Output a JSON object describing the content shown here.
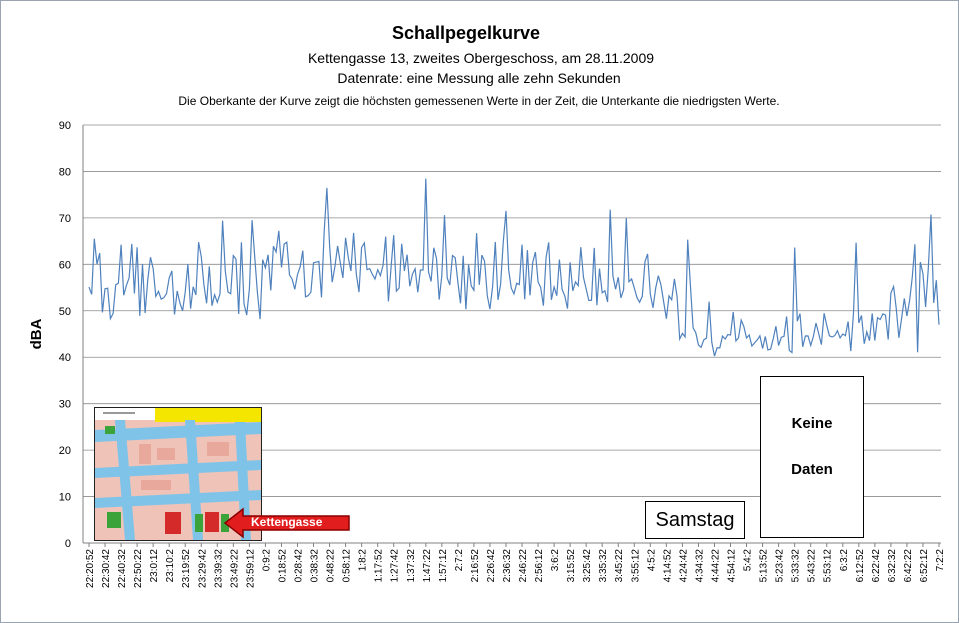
{
  "chart_data": {
    "type": "line",
    "title": "Schallpegelkurve",
    "subtitle_lines": [
      "Kettengasse 13, zweites Obergeschoss, am 28.11.2009",
      "Datenrate: eine Messung alle zehn Sekunden"
    ],
    "note": "Die Oberkante der Kurve zeigt die höchsten gemessenen Werte  in der Zeit, die Unterkante  die niedrigsten Werte.",
    "ylabel": "dBA",
    "xlabel": "",
    "ylim": [
      0,
      90
    ],
    "y_ticks": [
      0,
      10,
      20,
      30,
      40,
      50,
      60,
      70,
      80,
      90
    ],
    "grid": true,
    "legend": "none",
    "line_color": "#4f81bd",
    "x_tick_labels": [
      "22:20:52",
      "22:30:42",
      "22:40:32",
      "22:50:22",
      "23:0:12",
      "23:10:2",
      "23:19:52",
      "23:29:42",
      "23:39:32",
      "23:49:22",
      "23:59:12",
      "0:9:2",
      "0:18:52",
      "0:28:42",
      "0:38:32",
      "0:48:22",
      "0:58:12",
      "1:8:2",
      "1:17:52",
      "1:27:42",
      "1:37:32",
      "1:47:22",
      "1:57:12",
      "2:7:2",
      "2:16:52",
      "2:26:42",
      "2:36:32",
      "2:46:22",
      "2:56:12",
      "3:6:2",
      "3:15:52",
      "3:25:42",
      "3:35:32",
      "3:45:22",
      "3:55:12",
      "4:5:2",
      "4:14:52",
      "4:24:42",
      "4:34:32",
      "4:44:22",
      "4:54:12",
      "5:4:2",
      "5:13:52",
      "5:23:42",
      "5:33:32",
      "5:43:22",
      "5:53:12",
      "6:3:2",
      "6:12:52",
      "6:22:42",
      "6:32:32",
      "6:42:22",
      "6:52:12",
      "7:2:2"
    ],
    "band_segments": [
      {
        "from": "22:20:52",
        "to": "0:9:2",
        "low": 48,
        "high": 65,
        "peak": 75
      },
      {
        "from": "0:9:2",
        "to": "2:7:2",
        "low": 52,
        "high": 68,
        "peak": 79
      },
      {
        "from": "2:7:2",
        "to": "4:5:2",
        "low": 50,
        "high": 65,
        "peak": 74
      },
      {
        "from": "4:5:2",
        "to": "4:34:32",
        "low": 42,
        "high": 60,
        "peak": 74
      },
      {
        "from": "4:34:32",
        "to": "6:32:32",
        "low": 40,
        "high": 50,
        "peak": 69
      },
      {
        "from": "6:32:32",
        "to": "7:2:2",
        "low": 41,
        "high": 65,
        "peak": 78
      }
    ],
    "annotations": [
      "Samstag",
      "Keine",
      "Daten",
      "Kettengasse"
    ]
  },
  "annotations": {
    "samstag": "Samstag",
    "keine": "Keine",
    "daten": "Daten",
    "kettengasse": "Kettengasse"
  }
}
